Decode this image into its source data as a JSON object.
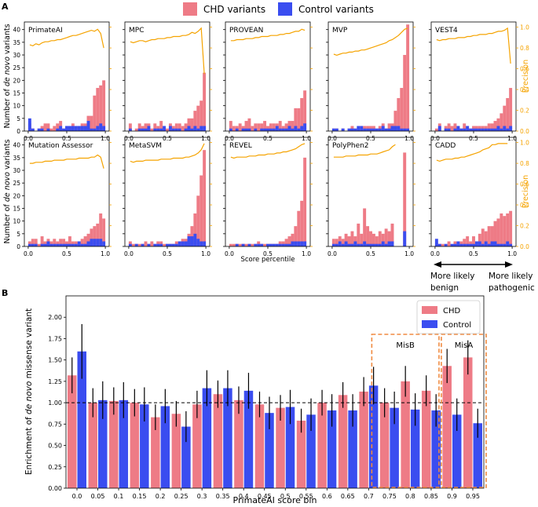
{
  "figure": {
    "panel_a_label": "A",
    "panel_b_label": "B",
    "colors": {
      "chd": "#ee7b86",
      "control": "#3a4df0",
      "precision": "#f5a300",
      "box": "#f08a40"
    }
  },
  "legend_top": {
    "chd": "CHD variants",
    "control": "Control variants"
  },
  "chart_data": [
    {
      "type": "bar",
      "panel": "A",
      "description": "Histograms of de novo variants by score percentile for 10 predictors, with precision curve on right axis",
      "ylabel_left": [
        "Number of ",
        "de novo",
        " variants"
      ],
      "ylabel_right": "Precision",
      "xlabel": "Score percentile",
      "xlim": [
        0,
        1
      ],
      "ylim_left": [
        0,
        43
      ],
      "ylim_right": [
        0,
        1.05
      ],
      "x_ticks": [
        "0.0",
        "0.5",
        "1.0"
      ],
      "y_left_ticks": [
        "0",
        "5",
        "10",
        "15",
        "20",
        "25",
        "30",
        "35",
        "40"
      ],
      "y_right_ticks": [
        "0.0",
        "0.2",
        "0.4",
        "0.6",
        "0.8",
        "1.0"
      ],
      "arrow_labels": {
        "left": [
          "More likely",
          "benign"
        ],
        "right": [
          "More likely",
          "pathogenic"
        ]
      },
      "bins": 25,
      "panels": [
        {
          "name": "PrimateAI",
          "chd": [
            3,
            1,
            0,
            1,
            2,
            3,
            3,
            1,
            2,
            3,
            4,
            1,
            2,
            2,
            3,
            2,
            2,
            3,
            3,
            6,
            6,
            14,
            17,
            18,
            20
          ],
          "control": [
            5,
            1,
            0,
            1,
            1,
            0,
            1,
            0,
            0,
            1,
            2,
            1,
            2,
            2,
            2,
            2,
            2,
            2,
            2,
            4,
            1,
            1,
            2,
            3,
            2
          ],
          "precision": [
            0.83,
            0.82,
            0.84,
            0.83,
            0.85,
            0.86,
            0.86,
            0.87,
            0.87,
            0.88,
            0.88,
            0.89,
            0.9,
            0.91,
            0.92,
            0.92,
            0.93,
            0.94,
            0.95,
            0.96,
            0.97,
            0.96,
            0.98,
            0.94,
            0.8
          ]
        },
        {
          "name": "MPC",
          "chd": [
            3,
            0,
            1,
            3,
            2,
            3,
            3,
            1,
            3,
            2,
            4,
            2,
            1,
            3,
            2,
            3,
            3,
            2,
            3,
            5,
            5,
            8,
            10,
            12,
            23
          ],
          "control": [
            1,
            0,
            0,
            1,
            1,
            1,
            2,
            0,
            1,
            1,
            1,
            2,
            0,
            2,
            1,
            1,
            1,
            0,
            1,
            2,
            1,
            2,
            1,
            2,
            2
          ],
          "precision": [
            0.86,
            0.85,
            0.86,
            0.87,
            0.87,
            0.86,
            0.87,
            0.88,
            0.88,
            0.89,
            0.89,
            0.89,
            0.9,
            0.9,
            0.91,
            0.91,
            0.91,
            0.92,
            0.92,
            0.93,
            0.95,
            0.94,
            0.96,
            0.99,
            0.55
          ]
        },
        {
          "name": "PROVEAN",
          "chd": [
            4,
            2,
            2,
            3,
            2,
            4,
            5,
            2,
            3,
            3,
            3,
            4,
            2,
            3,
            3,
            3,
            4,
            2,
            3,
            4,
            4,
            9,
            9,
            13,
            16
          ],
          "control": [
            1,
            0,
            1,
            0,
            1,
            1,
            1,
            0,
            1,
            0,
            1,
            1,
            1,
            1,
            1,
            2,
            1,
            1,
            1,
            2,
            1,
            2,
            1,
            2,
            3
          ],
          "precision": [
            0.87,
            0.87,
            0.88,
            0.88,
            0.88,
            0.89,
            0.89,
            0.89,
            0.9,
            0.9,
            0.91,
            0.91,
            0.91,
            0.92,
            0.92,
            0.92,
            0.93,
            0.93,
            0.94,
            0.94,
            0.95,
            0.96,
            0.96,
            0.98,
            0.97
          ]
        },
        {
          "name": "MVP",
          "chd": [
            1,
            1,
            0,
            1,
            0,
            1,
            2,
            1,
            1,
            2,
            2,
            2,
            2,
            2,
            1,
            2,
            3,
            1,
            3,
            3,
            8,
            13,
            17,
            30,
            42
          ],
          "control": [
            1,
            1,
            0,
            1,
            0,
            1,
            1,
            1,
            2,
            2,
            1,
            1,
            1,
            1,
            1,
            1,
            2,
            1,
            1,
            2,
            2,
            2,
            1,
            1,
            1
          ],
          "precision": [
            0.74,
            0.73,
            0.74,
            0.75,
            0.75,
            0.76,
            0.76,
            0.77,
            0.77,
            0.78,
            0.78,
            0.79,
            0.8,
            0.81,
            0.82,
            0.83,
            0.84,
            0.85,
            0.87,
            0.88,
            0.9,
            0.92,
            0.95,
            0.98,
            0.99
          ]
        },
        {
          "name": "VEST4",
          "chd": [
            1,
            3,
            0,
            2,
            3,
            2,
            3,
            2,
            1,
            3,
            2,
            1,
            2,
            2,
            2,
            2,
            2,
            3,
            3,
            4,
            5,
            7,
            10,
            13,
            17
          ],
          "control": [
            0,
            2,
            0,
            1,
            1,
            0,
            1,
            2,
            1,
            1,
            2,
            1,
            1,
            1,
            1,
            1,
            1,
            1,
            1,
            1,
            2,
            1,
            2,
            1,
            2
          ],
          "precision": [
            0.88,
            0.87,
            0.88,
            0.88,
            0.89,
            0.89,
            0.89,
            0.9,
            0.9,
            0.9,
            0.91,
            0.91,
            0.92,
            0.92,
            0.93,
            0.93,
            0.93,
            0.94,
            0.94,
            0.95,
            0.96,
            0.96,
            0.97,
            0.99,
            0.65
          ]
        },
        {
          "name": "Mutation Assessor",
          "chd": [
            2,
            3,
            3,
            1,
            4,
            2,
            3,
            2,
            3,
            2,
            3,
            3,
            2,
            4,
            2,
            2,
            2,
            3,
            4,
            5,
            7,
            8,
            9,
            13,
            11
          ],
          "control": [
            1,
            1,
            1,
            0,
            1,
            1,
            2,
            1,
            1,
            1,
            1,
            1,
            1,
            1,
            1,
            1,
            2,
            1,
            1,
            2,
            3,
            3,
            3,
            3,
            2
          ],
          "precision": [
            0.8,
            0.8,
            0.81,
            0.81,
            0.81,
            0.82,
            0.82,
            0.82,
            0.83,
            0.83,
            0.83,
            0.83,
            0.84,
            0.84,
            0.84,
            0.84,
            0.85,
            0.85,
            0.85,
            0.85,
            0.86,
            0.86,
            0.88,
            0.86,
            0.75
          ]
        },
        {
          "name": "MetaSVM",
          "chd": [
            2,
            1,
            1,
            1,
            1,
            2,
            1,
            2,
            1,
            2,
            2,
            1,
            1,
            1,
            1,
            2,
            2,
            3,
            3,
            5,
            8,
            13,
            20,
            28,
            38
          ],
          "control": [
            1,
            0,
            1,
            0,
            1,
            0,
            1,
            0,
            1,
            1,
            1,
            0,
            1,
            1,
            1,
            1,
            2,
            2,
            2,
            4,
            4,
            5,
            3,
            2,
            2
          ],
          "precision": [
            0.82,
            0.81,
            0.82,
            0.82,
            0.82,
            0.83,
            0.83,
            0.83,
            0.83,
            0.83,
            0.84,
            0.84,
            0.84,
            0.84,
            0.85,
            0.85,
            0.85,
            0.85,
            0.86,
            0.86,
            0.87,
            0.88,
            0.9,
            0.93,
            0.99
          ]
        },
        {
          "name": "REVEL",
          "chd": [
            1,
            1,
            1,
            1,
            1,
            1,
            1,
            1,
            1,
            2,
            1,
            1,
            1,
            1,
            1,
            1,
            2,
            2,
            3,
            4,
            5,
            8,
            14,
            18,
            35
          ],
          "control": [
            0,
            0,
            1,
            0,
            1,
            0,
            1,
            0,
            1,
            1,
            1,
            0,
            1,
            1,
            1,
            1,
            1,
            1,
            1,
            1,
            2,
            2,
            2,
            2,
            2
          ],
          "precision": [
            0.86,
            0.85,
            0.86,
            0.86,
            0.86,
            0.86,
            0.87,
            0.87,
            0.87,
            0.88,
            0.88,
            0.88,
            0.89,
            0.89,
            0.89,
            0.9,
            0.9,
            0.91,
            0.91,
            0.92,
            0.93,
            0.94,
            0.96,
            0.98,
            0.99
          ]
        },
        {
          "name": "PolyPhen2",
          "chd": [
            3,
            3,
            4,
            3,
            5,
            4,
            6,
            4,
            9,
            5,
            15,
            8,
            6,
            5,
            4,
            6,
            5,
            7,
            6,
            9,
            0,
            0,
            0,
            37,
            0
          ],
          "control": [
            1,
            1,
            2,
            1,
            2,
            1,
            1,
            2,
            1,
            1,
            2,
            1,
            1,
            1,
            1,
            1,
            2,
            1,
            2,
            2,
            0,
            0,
            0,
            6,
            0
          ],
          "precision": [
            0.86,
            0.86,
            0.86,
            0.86,
            0.87,
            0.87,
            0.87,
            0.87,
            0.88,
            0.88,
            0.88,
            0.88,
            0.89,
            0.89,
            0.89,
            0.9,
            0.91,
            0.92,
            0.93,
            0.96,
            0.98,
            null,
            null,
            null,
            null
          ]
        },
        {
          "name": "CADD",
          "chd": [
            1,
            1,
            1,
            0,
            2,
            0,
            2,
            1,
            2,
            3,
            4,
            2,
            4,
            2,
            5,
            7,
            6,
            8,
            8,
            10,
            11,
            13,
            12,
            13,
            14
          ],
          "control": [
            3,
            1,
            0,
            1,
            0,
            1,
            1,
            2,
            1,
            1,
            1,
            1,
            1,
            2,
            2,
            1,
            2,
            1,
            2,
            2,
            1,
            1,
            1,
            2,
            1
          ],
          "precision": [
            0.83,
            0.82,
            0.83,
            0.84,
            0.84,
            0.84,
            0.85,
            0.85,
            0.86,
            0.86,
            0.87,
            0.88,
            0.89,
            0.9,
            0.91,
            0.93,
            0.94,
            0.95,
            0.98,
            0.98,
            0.99,
            0.99,
            0.99,
            0.99,
            null
          ]
        }
      ]
    },
    {
      "type": "bar",
      "panel": "B",
      "description": "Enrichment of de novo missense variants by PrimateAI score bin",
      "ylabel": [
        "Enrichment of ",
        "de novo",
        " missense variant"
      ],
      "xlabel": "PrimateAI score bin",
      "ylim": [
        0,
        2.25
      ],
      "y_ticks": [
        "0.00",
        "0.25",
        "0.50",
        "0.75",
        "1.00",
        "1.25",
        "1.50",
        "1.75",
        "2.00"
      ],
      "reference_line": 1.0,
      "categories": [
        "0.0",
        "0.05",
        "0.1",
        "0.15",
        "0.2",
        "0.25",
        "0.3",
        "0.35",
        "0.4",
        "0.45",
        "0.5",
        "0.55",
        "0.6",
        "0.65",
        "0.7",
        "0.75",
        "0.8",
        "0.85",
        "0.9",
        "0.95"
      ],
      "series": [
        {
          "name": "CHD",
          "values": [
            1.32,
            1.0,
            1.02,
            1.0,
            0.83,
            0.87,
            0.98,
            1.1,
            1.03,
            0.98,
            0.94,
            0.79,
            1.0,
            1.09,
            1.13,
            1.0,
            1.25,
            1.14,
            1.43,
            1.53
          ],
          "error": [
            0.21,
            0.17,
            0.16,
            0.16,
            0.15,
            0.15,
            0.16,
            0.16,
            0.16,
            0.15,
            0.15,
            0.14,
            0.15,
            0.15,
            0.17,
            0.17,
            0.18,
            0.18,
            0.2,
            0.2
          ]
        },
        {
          "name": "Control",
          "values": [
            1.6,
            1.03,
            1.03,
            0.98,
            0.96,
            0.72,
            1.17,
            1.17,
            1.14,
            0.88,
            0.95,
            0.86,
            0.91,
            0.91,
            1.2,
            0.94,
            0.92,
            0.91,
            0.86,
            0.76
          ],
          "error": [
            0.32,
            0.22,
            0.21,
            0.2,
            0.2,
            0.18,
            0.21,
            0.21,
            0.21,
            0.19,
            0.2,
            0.19,
            0.19,
            0.19,
            0.22,
            0.19,
            0.19,
            0.19,
            0.19,
            0.17
          ]
        }
      ],
      "annotations": [
        {
          "text": "MisB"
        },
        {
          "text": "MisA"
        }
      ],
      "legend": {
        "position": "top-right",
        "items": [
          "CHD",
          "Control"
        ]
      }
    }
  ]
}
